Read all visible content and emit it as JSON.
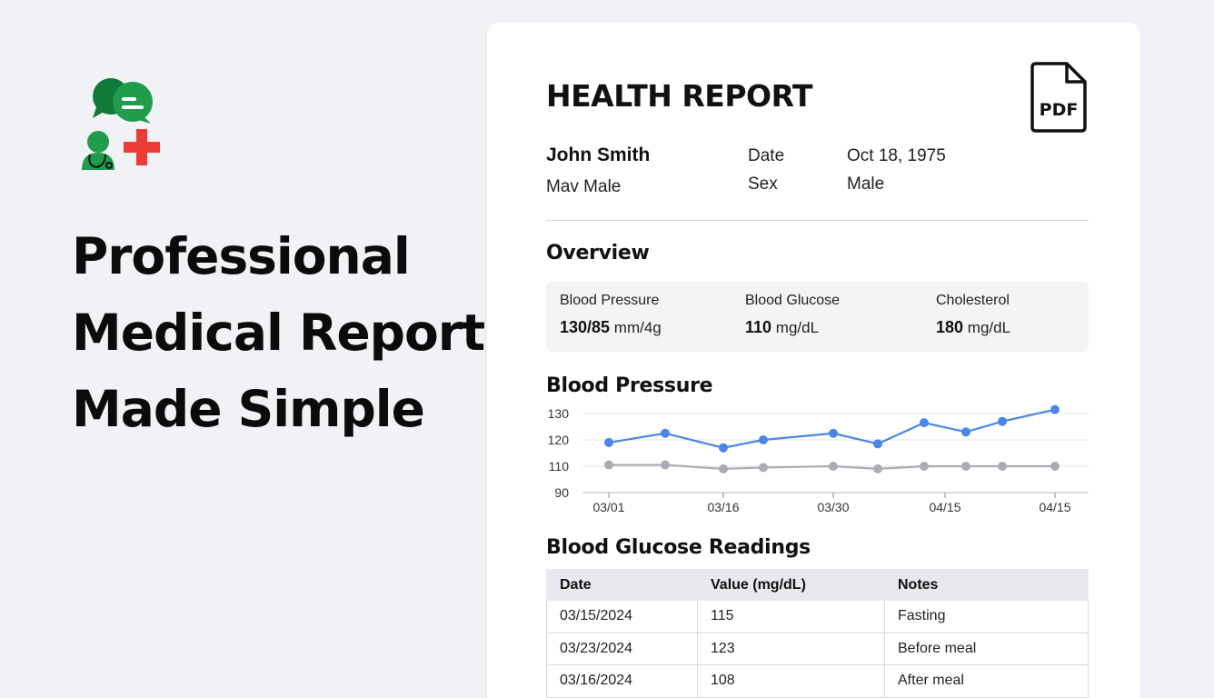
{
  "hero": {
    "headline_lines": [
      "Professional",
      "Medical Reports,",
      "Made Simple"
    ]
  },
  "report": {
    "title": "HEALTH REPORT",
    "pdf_label": "PDF",
    "patient": {
      "name": "John Smith",
      "subline": "Mav Male",
      "date_label": "Date",
      "date_value": "Oct 18, 1975",
      "sex_label": "Sex",
      "sex_value": "Male"
    },
    "overview": {
      "title": "Overview",
      "metrics": [
        {
          "label": "Blood Pressure",
          "value": "130/85",
          "unit": "mm/4g"
        },
        {
          "label": "Blood Glucose",
          "value": "110",
          "unit": "mg/dL"
        },
        {
          "label": "Cholesterol",
          "value": "180",
          "unit": "mg/dL"
        }
      ]
    },
    "bp_section_title": "Blood Pressure",
    "glucose_section_title": "Blood Glucose Readings",
    "table": {
      "headers": [
        "Date",
        "Value (mg/dL)",
        "Notes"
      ],
      "rows": [
        [
          "03/15/2024",
          "115",
          "Fasting"
        ],
        [
          "03/23/2024",
          "123",
          "Before meal"
        ],
        [
          "03/16/2024",
          "108",
          "After meal"
        ]
      ]
    }
  },
  "colors": {
    "systolic": "#4a86e8",
    "diastolic": "#a9adb3",
    "logo_green": "#1f9d4c",
    "logo_red": "#ef3b36"
  },
  "chart_data": {
    "type": "line",
    "title": "Blood Pressure",
    "y_ticks": [
      130,
      120,
      110,
      90
    ],
    "x_tick_labels": [
      "03/01",
      "03/16",
      "03/30",
      "04/15",
      "04/15"
    ],
    "series": [
      {
        "values": [
          119,
          122.5,
          117,
          120,
          122.5,
          118.5,
          126.5,
          123,
          127,
          131.5
        ]
      },
      {
        "values": [
          110.5,
          110.5,
          108,
          109,
          110,
          108,
          110,
          110,
          110,
          110
        ]
      }
    ],
    "grid": true
  }
}
